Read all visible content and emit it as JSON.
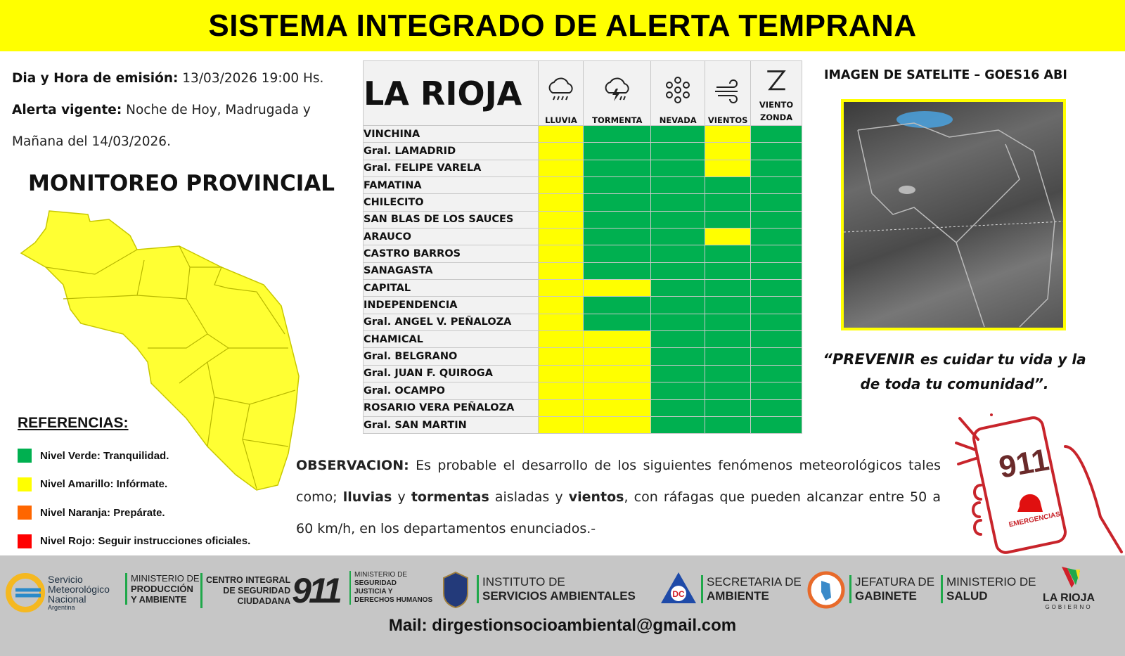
{
  "header": {
    "title": "SISTEMA INTEGRADO DE ALERTA TEMPRANA"
  },
  "emission": {
    "label": "Dia y Hora de emisión:",
    "value": "13/03/2026  19:00 Hs."
  },
  "alert": {
    "label": "Alerta vigente:",
    "value_line1": "Noche de Hoy, Madrugada y",
    "value_line2": "Mañana del 14/03/2026."
  },
  "monitor_title": "MONITOREO PROVINCIAL",
  "references": {
    "title": "REFERENCIAS",
    "items": [
      {
        "label": "Nivel Verde: Tranquilidad.",
        "color": "#00b050"
      },
      {
        "label": "Nivel Amarillo: Infórmate.",
        "color": "#ffff00"
      },
      {
        "label": "Nivel Naranja: Prepárate.",
        "color": "#ff6600"
      },
      {
        "label": "Nivel Rojo: Seguir instrucciones oficiales.",
        "color": "#ff0000"
      }
    ]
  },
  "colors": {
    "verde": "#00b050",
    "amarillo": "#ffff00",
    "map": "#ffff33"
  },
  "table": {
    "place": "LA RIOJA",
    "columns": [
      {
        "label": "LLUVIA",
        "icon": "rain-icon"
      },
      {
        "label": "TORMENTA",
        "icon": "storm-icon"
      },
      {
        "label": "NEVADA",
        "icon": "snow-icon"
      },
      {
        "label": "VIENTOS",
        "icon": "wind-icon"
      },
      {
        "label": "VIENTO ZONDA",
        "icon": "zonda-icon"
      }
    ],
    "rows": [
      {
        "name": "VINCHINA",
        "levels": [
          "amarillo",
          "verde",
          "verde",
          "amarillo",
          "verde"
        ]
      },
      {
        "name": "Gral. LAMADRID",
        "levels": [
          "amarillo",
          "verde",
          "verde",
          "amarillo",
          "verde"
        ]
      },
      {
        "name": "Gral. FELIPE VARELA",
        "levels": [
          "amarillo",
          "verde",
          "verde",
          "amarillo",
          "verde"
        ]
      },
      {
        "name": "FAMATINA",
        "levels": [
          "amarillo",
          "verde",
          "verde",
          "verde",
          "verde"
        ]
      },
      {
        "name": "CHILECITO",
        "levels": [
          "amarillo",
          "verde",
          "verde",
          "verde",
          "verde"
        ]
      },
      {
        "name": "SAN BLAS DE LOS SAUCES",
        "levels": [
          "amarillo",
          "verde",
          "verde",
          "verde",
          "verde"
        ]
      },
      {
        "name": "ARAUCO",
        "levels": [
          "amarillo",
          "verde",
          "verde",
          "amarillo",
          "verde"
        ]
      },
      {
        "name": "CASTRO BARROS",
        "levels": [
          "amarillo",
          "verde",
          "verde",
          "verde",
          "verde"
        ]
      },
      {
        "name": "SANAGASTA",
        "levels": [
          "amarillo",
          "verde",
          "verde",
          "verde",
          "verde"
        ]
      },
      {
        "name": "CAPITAL",
        "levels": [
          "amarillo",
          "amarillo",
          "verde",
          "verde",
          "verde"
        ]
      },
      {
        "name": "INDEPENDENCIA",
        "levels": [
          "amarillo",
          "verde",
          "verde",
          "verde",
          "verde"
        ]
      },
      {
        "name": "Gral. ANGEL V. PEÑALOZA",
        "levels": [
          "amarillo",
          "verde",
          "verde",
          "verde",
          "verde"
        ]
      },
      {
        "name": "CHAMICAL",
        "levels": [
          "amarillo",
          "amarillo",
          "verde",
          "verde",
          "verde"
        ]
      },
      {
        "name": "Gral. BELGRANO",
        "levels": [
          "amarillo",
          "amarillo",
          "verde",
          "verde",
          "verde"
        ]
      },
      {
        "name": "Gral. JUAN F. QUIROGA",
        "levels": [
          "amarillo",
          "amarillo",
          "verde",
          "verde",
          "verde"
        ]
      },
      {
        "name": "Gral. OCAMPO",
        "levels": [
          "amarillo",
          "amarillo",
          "verde",
          "verde",
          "verde"
        ]
      },
      {
        "name": "ROSARIO VERA PEÑALOZA",
        "levels": [
          "amarillo",
          "amarillo",
          "verde",
          "verde",
          "verde"
        ]
      },
      {
        "name": "Gral. SAN MARTIN",
        "levels": [
          "amarillo",
          "amarillo",
          "verde",
          "verde",
          "verde"
        ]
      }
    ]
  },
  "satellite": {
    "title": "IMAGEN DE SATELITE – GOES16 ABI"
  },
  "slogan": {
    "strong": "“PREVENIR",
    "rest": " es cuidar tu vida y la de toda tu comunidad”."
  },
  "observation": {
    "label": "OBSERVACION:",
    "t1": " Es probable el desarrollo de los siguientes fenómenos meteorológicos tales como; ",
    "b1": "lluvias",
    "t2": " y ",
    "b2": "tormentas",
    "t3": " aisladas y ",
    "b3": "vientos",
    "t4": ", con ráfagas que pueden alcanzar entre 50 a 60 km/h, en los departamentos enunciados.-"
  },
  "emergency": {
    "number": "911",
    "label": "EMERGENCIAS"
  },
  "footer": {
    "smn": [
      "Servicio",
      "Meteorológico",
      "Nacional",
      "Argentina"
    ],
    "produccion": [
      "MINISTERIO DE",
      "PRODUCCIÓN",
      "Y AMBIENTE"
    ],
    "centro": [
      "CENTRO INTEGRAL",
      "DE SEGURIDAD",
      "CIUDADANA"
    ],
    "centro_num": "911",
    "seguridad": [
      "MINISTERIO DE",
      "SEGURIDAD",
      "JUSTICIA Y",
      "DERECHOS HUMANOS"
    ],
    "instituto": [
      "INSTITUTO DE",
      "SERVICIOS AMBIENTALES"
    ],
    "dc": "DC",
    "secretaria": [
      "SECRETARIA DE",
      "AMBIENTE"
    ],
    "jefatura": [
      "JEFATURA DE",
      "GABINETE"
    ],
    "salud": [
      "MINISTERIO DE",
      "SALUD"
    ],
    "gobierno": [
      "LA RIOJA",
      "GOBIERNO"
    ],
    "mail": "Mail: dirgestionsocioambiental@gmail.com"
  }
}
